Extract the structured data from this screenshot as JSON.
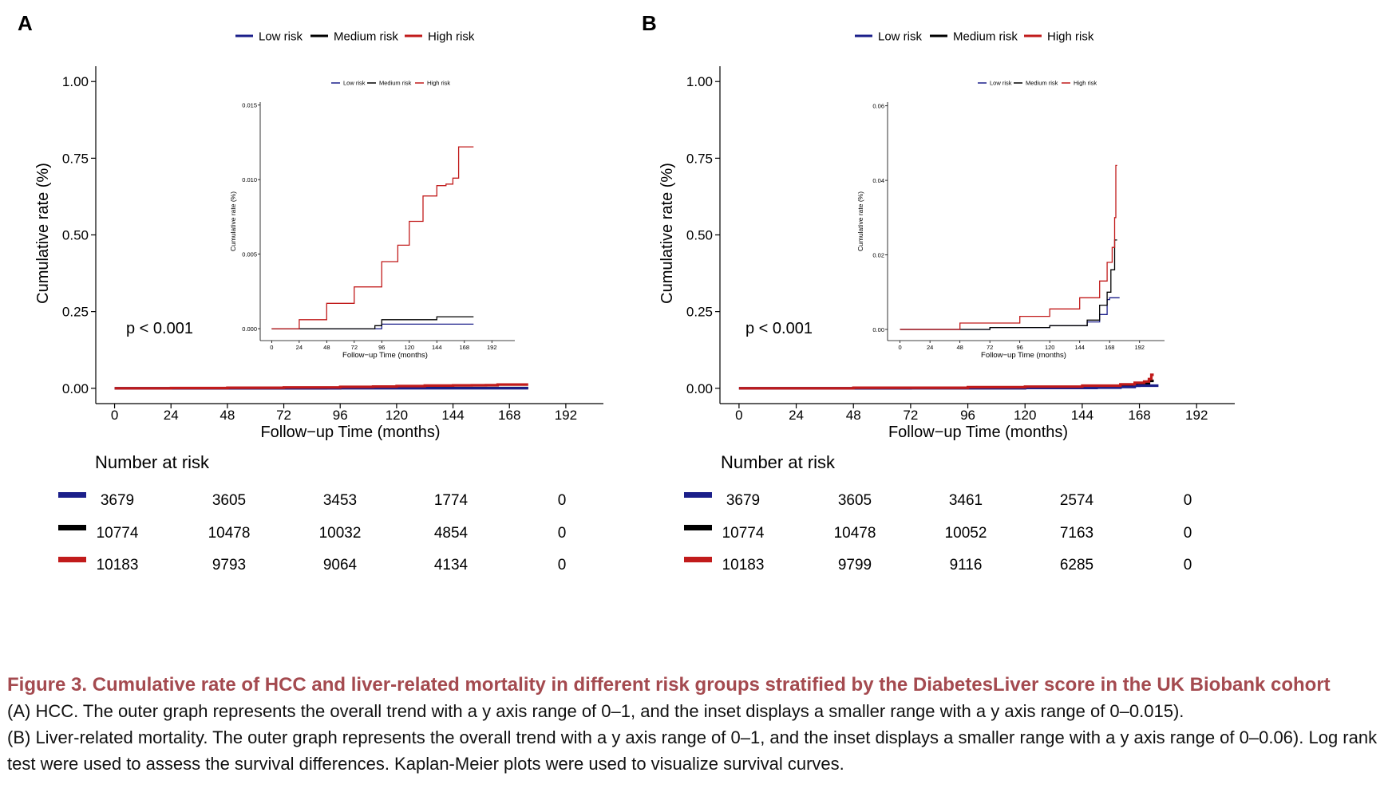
{
  "caption": {
    "title": "Figure 3.  Cumulative rate of HCC and liver-related mortality in different risk groups stratified by the DiabetesLiver score in the UK Biobank cohort",
    "line_a": "(A) HCC. The outer graph represents the overall trend with a y axis range of 0–1, and the inset displays a smaller range with a y axis range of 0–0.015).",
    "line_b": "(B) Liver-related mortality. The outer graph represents the overall trend with a y axis range of 0–1, and the inset displays a smaller range with a y axis range of 0–0.06). Log rank test were used to assess the survival differences. Kaplan-Meier plots were used to visualize survival curves."
  },
  "colors": {
    "low": "#1b1f8a",
    "medium": "#000000",
    "high": "#c11b1b"
  },
  "chart_data": [
    {
      "panel": "A",
      "type": "line",
      "series_names": [
        "Low risk",
        "Medium risk",
        "High risk"
      ],
      "xlabel": "Follow−up Time (months)",
      "ylabel": "Cumulative rate (%)",
      "x_ticks": [
        0,
        24,
        48,
        72,
        96,
        120,
        144,
        168,
        192
      ],
      "y_ticks": [
        0.0,
        0.25,
        0.5,
        0.75,
        1.0
      ],
      "y_tick_labels": [
        "0.00",
        "0.25",
        "0.50",
        "0.75",
        "1.00"
      ],
      "xlim": [
        -8,
        208
      ],
      "ylim": [
        -0.05,
        1.05
      ],
      "annotation": "p < 0.001",
      "series": [
        {
          "name": "Low risk",
          "x": [
            0,
            96,
            176
          ],
          "values": [
            0,
            0.0003,
            0.0003
          ]
        },
        {
          "name": "Medium risk",
          "x": [
            0,
            90,
            96,
            120,
            144,
            176
          ],
          "values": [
            0,
            0.0002,
            0.0006,
            0.0006,
            0.0008,
            0.0008
          ]
        },
        {
          "name": "High risk",
          "x": [
            0,
            24,
            48,
            72,
            96,
            110,
            120,
            132,
            144,
            152,
            158,
            163,
            176
          ],
          "values": [
            0,
            0.0006,
            0.0017,
            0.0028,
            0.0045,
            0.0056,
            0.0072,
            0.0089,
            0.0096,
            0.0097,
            0.0101,
            0.0122,
            0.0122
          ]
        }
      ],
      "inset": {
        "xlabel": "Follow−up Time (months)",
        "ylabel": "Cumulative rate (%)",
        "x_ticks": [
          0,
          24,
          48,
          72,
          96,
          120,
          144,
          168,
          192
        ],
        "y_ticks": [
          0,
          0.005,
          0.01,
          0.015
        ],
        "y_tick_labels": [
          "0.000",
          "0.005",
          "0.010",
          "0.015"
        ],
        "xlim": [
          -10,
          212
        ],
        "ylim": [
          -0.0008,
          0.0152
        ]
      },
      "risk_table": {
        "title": "Number at risk",
        "rows": [
          {
            "group": "Low risk",
            "values": [
              "3679",
              "3605",
              "3453",
              "1774",
              "0"
            ]
          },
          {
            "group": "Medium risk",
            "values": [
              "10774",
              "10478",
              "10032",
              "4854",
              "0"
            ]
          },
          {
            "group": "High risk",
            "values": [
              "10183",
              "9793",
              "9064",
              "4134",
              "0"
            ]
          }
        ]
      }
    },
    {
      "panel": "B",
      "type": "line",
      "series_names": [
        "Low risk",
        "Medium risk",
        "High risk"
      ],
      "xlabel": "Follow−up Time (months)",
      "ylabel": "Cumulative rate (%)",
      "x_ticks": [
        0,
        24,
        48,
        72,
        96,
        120,
        144,
        168,
        192
      ],
      "y_ticks": [
        0.0,
        0.25,
        0.5,
        0.75,
        1.0
      ],
      "y_tick_labels": [
        "0.00",
        "0.25",
        "0.50",
        "0.75",
        "1.00"
      ],
      "xlim": [
        -8,
        208
      ],
      "ylim": [
        -0.05,
        1.05
      ],
      "annotation": "p < 0.001",
      "series": [
        {
          "name": "Low risk",
          "x": [
            0,
            72,
            120,
            150,
            160,
            166,
            168,
            176
          ],
          "values": [
            0,
            0.0005,
            0.001,
            0.002,
            0.004,
            0.008,
            0.0085,
            0.0085
          ]
        },
        {
          "name": "Medium risk",
          "x": [
            0,
            72,
            120,
            150,
            160,
            166,
            169,
            172,
            174
          ],
          "values": [
            0,
            0.0005,
            0.001,
            0.0025,
            0.0065,
            0.01,
            0.016,
            0.024,
            0.024
          ]
        },
        {
          "name": "High risk",
          "x": [
            0,
            48,
            96,
            120,
            144,
            160,
            166,
            170,
            171,
            172,
            173,
            174
          ],
          "values": [
            0,
            0.0017,
            0.0035,
            0.0055,
            0.0085,
            0.013,
            0.018,
            0.022,
            0.022,
            0.03,
            0.044,
            0.044
          ]
        }
      ],
      "inset": {
        "xlabel": "Follow−up Time (months)",
        "ylabel": "Cumulative rate (%)",
        "x_ticks": [
          0,
          24,
          48,
          72,
          96,
          120,
          144,
          168,
          192
        ],
        "y_ticks": [
          0.0,
          0.02,
          0.04,
          0.06
        ],
        "y_tick_labels": [
          "0.00",
          "0.02",
          "0.04",
          "0.06"
        ],
        "xlim": [
          -10,
          212
        ],
        "ylim": [
          -0.003,
          0.061
        ]
      },
      "risk_table": {
        "title": "Number at risk",
        "rows": [
          {
            "group": "Low risk",
            "values": [
              "3679",
              "3605",
              "3461",
              "2574",
              "0"
            ]
          },
          {
            "group": "Medium risk",
            "values": [
              "10774",
              "10478",
              "10052",
              "7163",
              "0"
            ]
          },
          {
            "group": "High risk",
            "values": [
              "10183",
              "9799",
              "9116",
              "6285",
              "0"
            ]
          }
        ]
      }
    }
  ]
}
